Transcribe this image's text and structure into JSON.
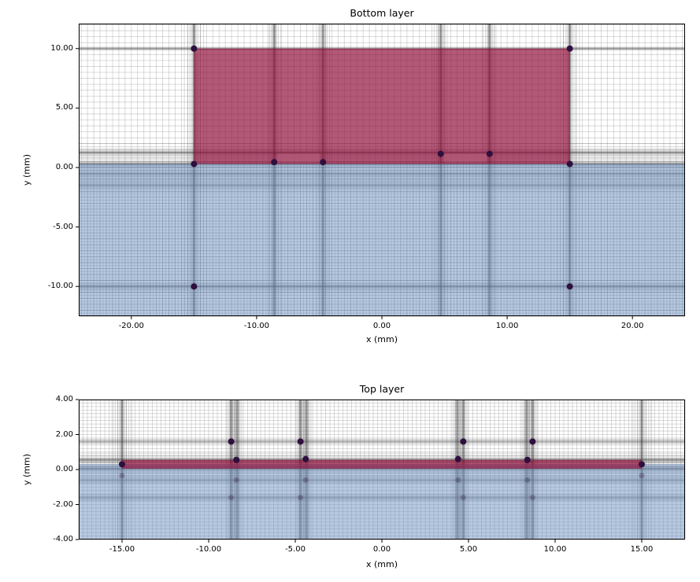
{
  "figure": {
    "background": "#ffffff"
  },
  "style": {
    "mesh_line_color": "#2a2a2a",
    "mesh_line_opacity": 0.21,
    "mesh_line_width": 0.8,
    "spine_color": "#000000",
    "tick_length": 4,
    "point_color": "#2e0f3e",
    "point_radius": 4,
    "faint_point_opacity": 0.28,
    "conductor_color": "#8f0a38",
    "conductor_opacity": 0.68,
    "substrate_color": "#6f94c4",
    "substrate_opacity": 0.5
  },
  "chart_data": [
    {
      "type": "mesh",
      "title": "Bottom layer",
      "xlabel": "x (mm)",
      "ylabel": "y (mm)",
      "xlim": [
        -24.2,
        24.2
      ],
      "ylim": [
        -12.5,
        12.1
      ],
      "grid": "mesh",
      "legend": "none",
      "xticks": {
        "values": [
          -20,
          -10,
          0,
          10,
          20
        ],
        "labels": [
          "-20.00",
          "-10.00",
          "0.00",
          "10.00",
          "20.00"
        ]
      },
      "yticks": {
        "values": [
          -10,
          -5,
          0,
          5,
          10
        ],
        "labels": [
          "-10.00",
          "-5.00",
          "0.00",
          "5.00",
          "10.00"
        ]
      },
      "regions": [
        {
          "name": "substrate",
          "x": [
            -24.2,
            24.2
          ],
          "y": [
            -12.5,
            0.3
          ],
          "fill": "substrate"
        },
        {
          "name": "conductor",
          "x": [
            -15,
            15
          ],
          "y": [
            0.3,
            10
          ],
          "fill": "conductor"
        }
      ],
      "mesh": {
        "vertical": {
          "uniform": [
            {
              "step": 0.5
            },
            {
              "step": 0.25,
              "srange": [
                -12.5,
                0.3
              ]
            }
          ],
          "clusters": [
            {
              "center": -15,
              "lines": 10,
              "min_step": 0.02,
              "growth": 1.5
            },
            {
              "center": 15,
              "lines": 10,
              "min_step": 0.02,
              "growth": 1.5
            },
            {
              "center": -8.6,
              "lines": 9,
              "min_step": 0.02,
              "growth": 1.5
            },
            {
              "center": 8.6,
              "lines": 9,
              "min_step": 0.02,
              "growth": 1.5
            },
            {
              "center": -4.7,
              "lines": 9,
              "min_step": 0.02,
              "growth": 1.5
            },
            {
              "center": 4.7,
              "lines": 9,
              "min_step": 0.02,
              "growth": 1.5
            }
          ]
        },
        "horizontal": {
          "uniform": [
            {
              "step": 0.5
            },
            {
              "step": 0.25,
              "vrange": [
                -12.5,
                0.3
              ]
            }
          ],
          "clusters": [
            {
              "center": 0.3,
              "lines": 9,
              "min_step": 0.02,
              "growth": 1.5
            },
            {
              "center": 1.25,
              "lines": 10,
              "min_step": 0.02,
              "growth": 1.5
            },
            {
              "center": 10,
              "lines": 4,
              "min_step": 0.03,
              "growth": 1.6
            },
            {
              "center": -10,
              "lines": 7,
              "min_step": 0.03,
              "growth": 1.6
            },
            {
              "center": -0.55,
              "lines": 6,
              "min_step": 0.04,
              "growth": 1.7
            },
            {
              "center": -1.5,
              "lines": 6,
              "min_step": 0.04,
              "growth": 1.7
            }
          ]
        },
        "masks": [
          {
            "x": [
              4.95,
              8.35
            ],
            "y": [
              0.5,
              1.15
            ]
          },
          {
            "x": [
              -8.35,
              -4.95
            ],
            "y": [
              0.5,
              1.15
            ]
          }
        ]
      },
      "points": [
        [
          -15,
          10
        ],
        [
          15,
          10
        ],
        [
          -15,
          0.3
        ],
        [
          15,
          0.3
        ],
        [
          -8.6,
          0.45
        ],
        [
          -4.7,
          0.45
        ],
        [
          4.7,
          1.15
        ],
        [
          8.6,
          1.15
        ],
        [
          -15,
          -10
        ],
        [
          15,
          -10
        ]
      ],
      "faint_points": []
    },
    {
      "type": "mesh",
      "title": "Top layer",
      "xlabel": "x (mm)",
      "ylabel": "y (mm)",
      "xlim": [
        -17.5,
        17.5
      ],
      "ylim": [
        -4,
        4
      ],
      "grid": "mesh",
      "legend": "none",
      "xticks": {
        "values": [
          -15,
          -10,
          -5,
          0,
          5,
          10,
          15
        ],
        "labels": [
          "-15.00",
          "-10.00",
          "-5.00",
          "0.00",
          "5.00",
          "10.00",
          "15.00"
        ]
      },
      "yticks": {
        "values": [
          -4,
          -2,
          0,
          2,
          4
        ],
        "labels": [
          "-4.00",
          "-2.00",
          "0.00",
          "2.00",
          "4.00"
        ]
      },
      "regions": [
        {
          "name": "substrate",
          "x": [
            -17.5,
            17.5
          ],
          "y": [
            -4,
            0.3
          ],
          "fill": "substrate"
        },
        {
          "name": "conductor",
          "x": [
            -15,
            15
          ],
          "y": [
            0.05,
            0.55
          ],
          "fill": "conductor"
        }
      ],
      "mesh": {
        "vertical": {
          "uniform": [
            {
              "step": 0.25
            }
          ],
          "clusters": [
            {
              "center": -15,
              "lines": 10,
              "min_step": 0.015,
              "growth": 1.5
            },
            {
              "center": 15,
              "lines": 10,
              "min_step": 0.015,
              "growth": 1.5
            },
            {
              "center": -8.7,
              "lines": 8,
              "min_step": 0.015,
              "growth": 1.5
            },
            {
              "center": -8.35,
              "lines": 8,
              "min_step": 0.015,
              "growth": 1.5
            },
            {
              "center": -4.7,
              "lines": 8,
              "min_step": 0.015,
              "growth": 1.5
            },
            {
              "center": -4.35,
              "lines": 8,
              "min_step": 0.015,
              "growth": 1.5
            },
            {
              "center": 4.35,
              "lines": 8,
              "min_step": 0.015,
              "growth": 1.5
            },
            {
              "center": 4.7,
              "lines": 8,
              "min_step": 0.015,
              "growth": 1.5
            },
            {
              "center": 8.35,
              "lines": 8,
              "min_step": 0.015,
              "growth": 1.5
            },
            {
              "center": 8.7,
              "lines": 8,
              "min_step": 0.015,
              "growth": 1.5
            }
          ]
        },
        "horizontal": {
          "uniform": [
            {
              "step": 0.2
            }
          ],
          "clusters": [
            {
              "center": 0.55,
              "lines": 9,
              "min_step": 0.015,
              "growth": 1.5
            },
            {
              "center": 0.05,
              "lines": 9,
              "min_step": 0.015,
              "growth": 1.5
            },
            {
              "center": 1.6,
              "lines": 4,
              "min_step": 0.03,
              "growth": 1.6
            },
            {
              "center": -0.6,
              "lines": 5,
              "min_step": 0.03,
              "growth": 1.6
            },
            {
              "center": -1.6,
              "lines": 5,
              "min_step": 0.03,
              "growth": 1.6
            }
          ]
        },
        "masks": []
      },
      "points": [
        [
          -15,
          0.3
        ],
        [
          15,
          0.3
        ],
        [
          -8.7,
          1.6
        ],
        [
          -4.7,
          1.6
        ],
        [
          4.7,
          1.6
        ],
        [
          8.7,
          1.6
        ],
        [
          -8.4,
          0.55
        ],
        [
          -4.4,
          0.6
        ],
        [
          4.4,
          0.6
        ],
        [
          8.4,
          0.55
        ]
      ],
      "faint_points": [
        [
          -8.4,
          -0.6
        ],
        [
          -4.4,
          -0.6
        ],
        [
          4.4,
          -0.6
        ],
        [
          8.4,
          -0.6
        ],
        [
          -8.7,
          -1.6
        ],
        [
          -4.7,
          -1.6
        ],
        [
          4.7,
          -1.6
        ],
        [
          8.7,
          -1.6
        ],
        [
          -15,
          -0.35
        ],
        [
          15,
          -0.35
        ]
      ]
    }
  ]
}
